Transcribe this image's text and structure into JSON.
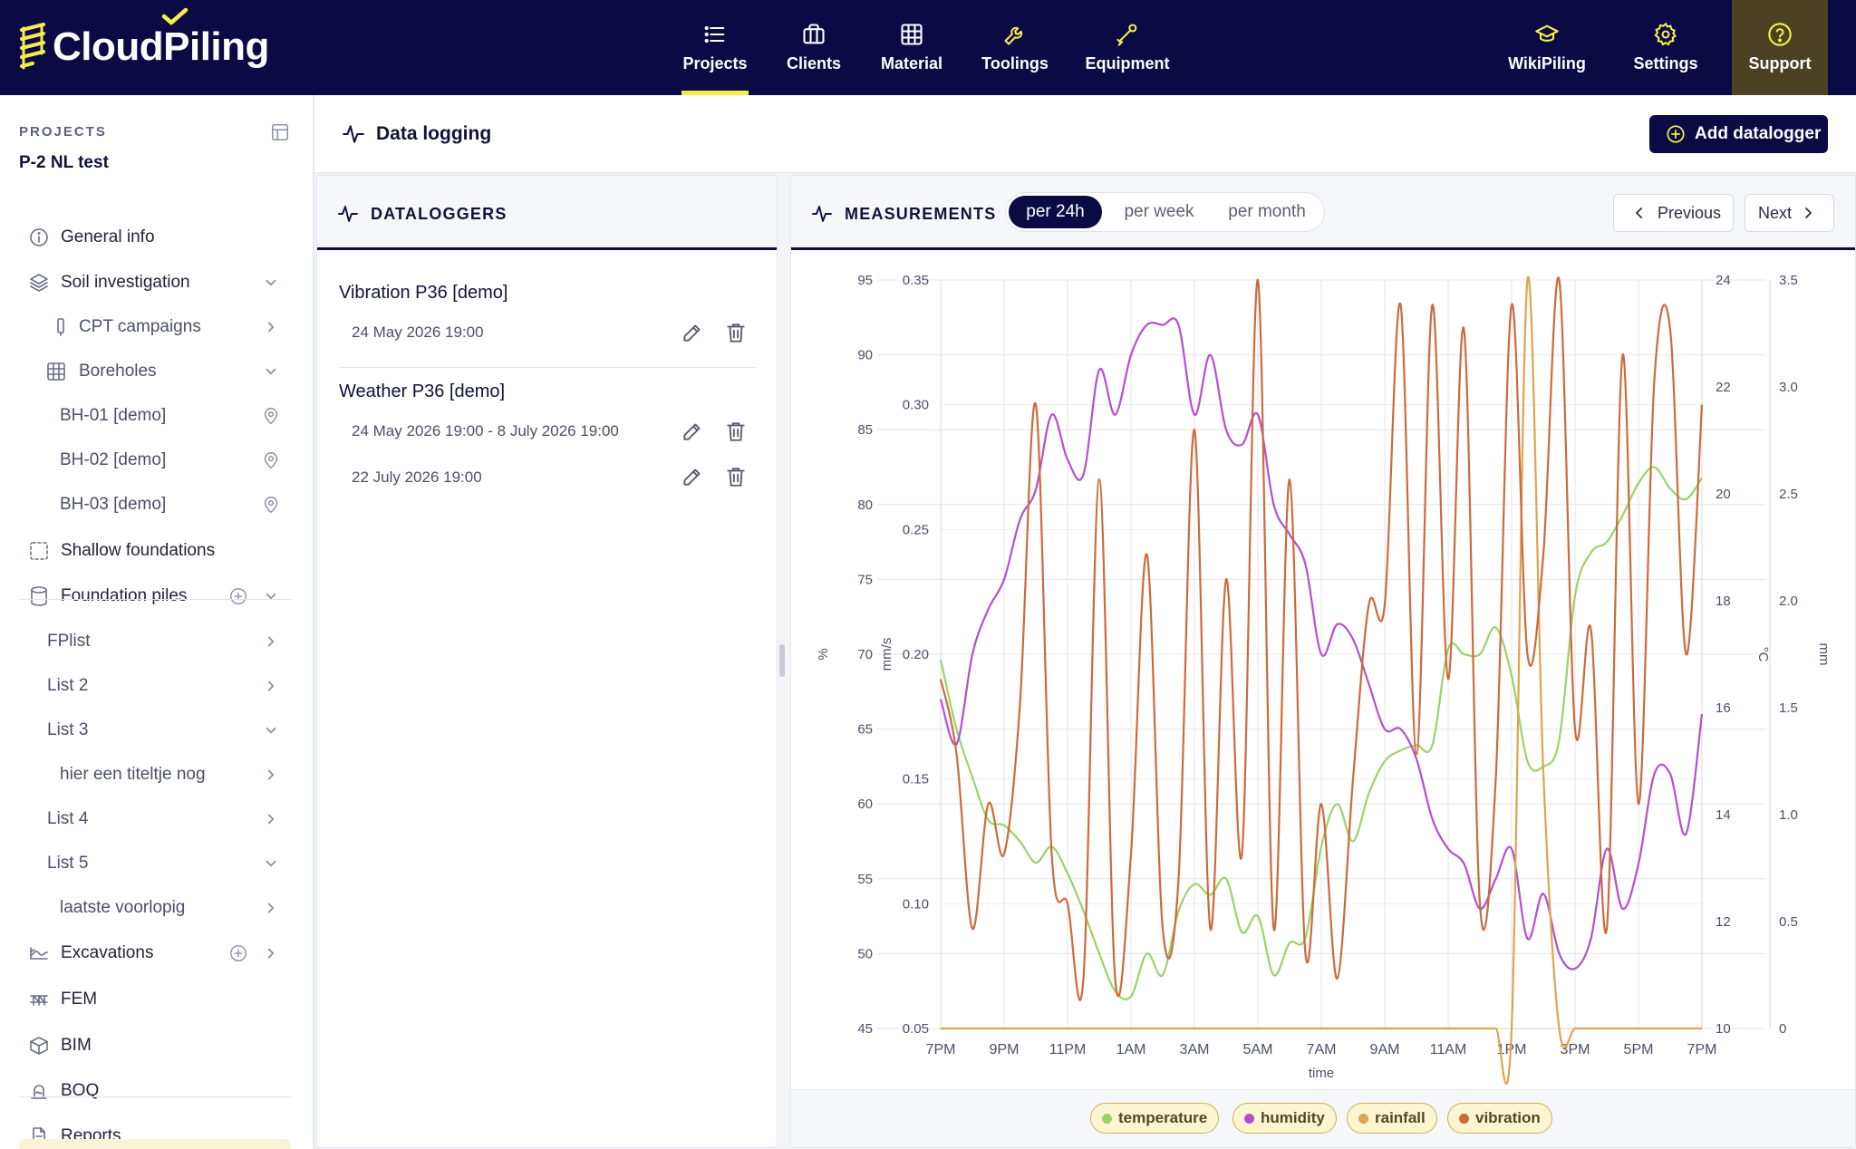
{
  "app": {
    "logo_text": "CloudPiling"
  },
  "nav": {
    "main": [
      {
        "id": "projects",
        "label": "Projects",
        "icon": "list-icon",
        "active": true
      },
      {
        "id": "clients",
        "label": "Clients",
        "icon": "briefcase-icon"
      },
      {
        "id": "material",
        "label": "Material",
        "icon": "grid-icon"
      },
      {
        "id": "toolings",
        "label": "Toolings",
        "icon": "wrench-icon"
      },
      {
        "id": "equipment",
        "label": "Equipment",
        "icon": "drill-icon"
      }
    ],
    "right": [
      {
        "id": "wikipiling",
        "label": "WikiPiling",
        "icon": "graduation-cap-icon"
      },
      {
        "id": "settings",
        "label": "Settings",
        "icon": "gear-icon"
      },
      {
        "id": "support",
        "label": "Support",
        "icon": "question-circle-icon"
      }
    ]
  },
  "sidebar": {
    "header": "PROJECTS",
    "project_name": "P-2 NL test",
    "items": [
      {
        "label": "General info",
        "icon": "info-icon"
      },
      {
        "label": "Soil investigation",
        "icon": "layers-icon"
      },
      {
        "label": "CPT campaigns",
        "icon": "probe-icon"
      },
      {
        "label": "Boreholes",
        "icon": "borehole-grid-icon"
      },
      {
        "label": "BH-01 [demo]",
        "icon": "map-pin-icon"
      },
      {
        "label": "BH-02 [demo]",
        "icon": "map-pin-icon"
      },
      {
        "label": "BH-03 [demo]",
        "icon": "map-pin-icon"
      },
      {
        "label": "Shallow foundations",
        "icon": "dashed-square-icon"
      },
      {
        "label": "Foundation piles",
        "icon": "cylinder-icon"
      },
      {
        "label": "FPlist"
      },
      {
        "label": "List 2"
      },
      {
        "label": "List 3"
      },
      {
        "label": "hier een titeltje nog"
      },
      {
        "label": "List 4"
      },
      {
        "label": "List 5"
      },
      {
        "label": "laatste voorlopig"
      },
      {
        "label": "Excavations",
        "icon": "excavation-icon"
      },
      {
        "label": "FEM",
        "icon": "fem-icon"
      },
      {
        "label": "BIM",
        "icon": "cube-icon"
      },
      {
        "label": "BOQ",
        "icon": "scale-icon"
      },
      {
        "label": "Reports",
        "icon": "document-icon"
      }
    ]
  },
  "page": {
    "title": "Data logging",
    "add_button": "Add datalogger"
  },
  "dataloggers": {
    "title": "DATALOGGERS",
    "items": [
      {
        "name": "Vibration P36 [demo]",
        "ranges": [
          "24 May 2026 19:00"
        ]
      },
      {
        "name": "Weather P36 [demo]",
        "ranges": [
          "24 May 2026 19:00 - 8 July 2026 19:00",
          "22 July 2026 19:00"
        ]
      }
    ]
  },
  "measurements": {
    "title": "MEASUREMENTS",
    "periods": [
      "per 24h",
      "per week",
      "per month"
    ],
    "active_period": "per 24h",
    "previous": "Previous",
    "next": "Next"
  },
  "chart_data": {
    "type": "line",
    "xlabel": "time",
    "x_ticks": [
      "7PM",
      "9PM",
      "11PM",
      "1AM",
      "3AM",
      "5AM",
      "7AM",
      "9AM",
      "11AM",
      "1PM",
      "3PM",
      "5PM",
      "7PM"
    ],
    "x_range_hours": [
      0,
      24
    ],
    "axes": {
      "humidity": {
        "unit": "%",
        "side": "left-outer",
        "range": [
          45,
          95
        ],
        "ticks": [
          "95",
          "90",
          "85",
          "80",
          "75",
          "70",
          "65",
          "60",
          "55",
          "50",
          "45"
        ]
      },
      "vibration": {
        "unit": "mm/s",
        "side": "left-inner",
        "range": [
          0.05,
          0.35
        ],
        "ticks": [
          "0.35",
          "0.30",
          "0.25",
          "0.20",
          "0.15",
          "0.10",
          "0.05"
        ]
      },
      "temperature": {
        "unit": "°C",
        "side": "right-inner",
        "range": [
          10,
          24
        ],
        "ticks": [
          "24",
          "22",
          "20",
          "18",
          "16",
          "14",
          "12",
          "10"
        ]
      },
      "rainfall": {
        "unit": "mm",
        "side": "right-outer",
        "range": [
          0,
          3.5
        ],
        "ticks": [
          "3.5",
          "3.0",
          "2.5",
          "2.0",
          "1.5",
          "1.0",
          "0.5",
          "0"
        ]
      }
    },
    "grid": true,
    "legend_position": "bottom",
    "series": [
      {
        "name": "temperature",
        "axis": "temperature",
        "color": "#9ad36a",
        "x": [
          0,
          0.5,
          1,
          1.5,
          2,
          2.5,
          3,
          3.5,
          4,
          4.5,
          5,
          5.5,
          6,
          6.5,
          7,
          7.5,
          8,
          8.5,
          9,
          9.5,
          10,
          10.5,
          11,
          11.5,
          12,
          12.5,
          13,
          13.5,
          14,
          14.5,
          15,
          15.5,
          16,
          16.5,
          17,
          17.5,
          18,
          18.5,
          19,
          19.5,
          20,
          20.5,
          21,
          21.5,
          22,
          22.5,
          23,
          23.5,
          24
        ],
        "values": [
          16.9,
          15.6,
          14.7,
          13.9,
          13.8,
          13.5,
          13.1,
          13.4,
          12.9,
          12.2,
          11.4,
          10.7,
          10.6,
          11.4,
          11.0,
          12.2,
          12.7,
          12.5,
          12.8,
          11.8,
          12.1,
          11.0,
          11.6,
          11.7,
          13.4,
          14.2,
          13.5,
          14.4,
          15.0,
          15.2,
          15.3,
          15.3,
          17.1,
          17.0,
          17.0,
          17.5,
          16.6,
          15.0,
          14.9,
          15.4,
          18.1,
          18.9,
          19.1,
          19.6,
          20.2,
          20.5,
          20.1,
          19.9,
          20.3
        ]
      },
      {
        "name": "humidity",
        "axis": "humidity",
        "color": "#b44fd1",
        "x": [
          0,
          0.5,
          1,
          1.5,
          2,
          2.5,
          3,
          3.5,
          4,
          4.5,
          5,
          5.5,
          6,
          6.5,
          7,
          7.5,
          8,
          8.5,
          9,
          9.5,
          10,
          10.5,
          11,
          11.5,
          12,
          12.5,
          13,
          13.5,
          14,
          14.5,
          15,
          15.5,
          16,
          16.5,
          17,
          17.5,
          18,
          18.5,
          19,
          19.5,
          20,
          20.5,
          21,
          21.5,
          22,
          22.5,
          23,
          23.5,
          24
        ],
        "values": [
          67,
          64,
          70,
          73,
          75,
          79,
          81,
          86,
          83,
          82,
          89,
          86,
          90,
          92,
          92,
          92,
          86,
          90,
          85,
          84,
          86,
          80,
          78,
          76,
          70,
          72,
          71,
          68,
          65,
          65,
          63,
          59,
          57,
          56,
          53,
          55,
          57,
          51,
          54,
          50,
          49,
          51,
          57,
          53,
          56,
          62,
          62,
          58,
          66
        ]
      },
      {
        "name": "rainfall",
        "axis": "rainfall",
        "color": "#e0a34e",
        "x": [
          0,
          0.5,
          1,
          1.5,
          2,
          2.5,
          3,
          3.5,
          4,
          4.5,
          5,
          5.5,
          6,
          6.5,
          7,
          7.5,
          8,
          8.5,
          9,
          9.5,
          10,
          10.5,
          11,
          11.5,
          12,
          12.5,
          13,
          13.5,
          14,
          14.5,
          15,
          15.5,
          16,
          16.5,
          17,
          17.5,
          18,
          18.5,
          19,
          19.5,
          20,
          20.5,
          21,
          21.5,
          22,
          22.5,
          23,
          23.5,
          24
        ],
        "values": [
          0,
          0,
          0,
          0,
          0,
          0,
          0,
          0,
          0,
          0,
          0,
          0,
          0,
          0,
          0,
          0,
          0,
          0,
          0,
          0,
          0,
          0,
          0,
          0,
          0,
          0,
          0,
          0,
          0,
          0,
          0,
          0,
          0,
          0,
          0,
          0,
          0,
          3.5,
          1.2,
          0,
          0,
          0,
          0,
          0,
          0,
          0,
          0,
          0,
          0
        ]
      },
      {
        "name": "vibration",
        "axis": "vibration",
        "color": "#cc6b3c",
        "x": [
          0,
          0.5,
          1,
          1.5,
          2,
          2.5,
          3,
          3.5,
          4,
          4.5,
          5,
          5.5,
          6,
          6.5,
          7,
          7.5,
          8,
          8.5,
          9,
          9.5,
          10,
          10.5,
          11,
          11.5,
          12,
          12.5,
          13,
          13.5,
          14,
          14.5,
          15,
          15.5,
          16,
          16.5,
          17,
          17.5,
          18,
          18.5,
          19,
          19.5,
          20,
          20.5,
          21,
          21.5,
          22,
          22.5,
          23,
          23.5,
          24
        ],
        "values": [
          0.19,
          0.16,
          0.09,
          0.14,
          0.12,
          0.18,
          0.3,
          0.12,
          0.1,
          0.07,
          0.27,
          0.07,
          0.12,
          0.24,
          0.09,
          0.11,
          0.29,
          0.09,
          0.23,
          0.12,
          0.35,
          0.09,
          0.27,
          0.08,
          0.14,
          0.07,
          0.15,
          0.22,
          0.22,
          0.34,
          0.16,
          0.34,
          0.19,
          0.33,
          0.1,
          0.15,
          0.34,
          0.2,
          0.24,
          0.35,
          0.17,
          0.21,
          0.09,
          0.32,
          0.14,
          0.31,
          0.33,
          0.2,
          0.3
        ]
      }
    ]
  }
}
